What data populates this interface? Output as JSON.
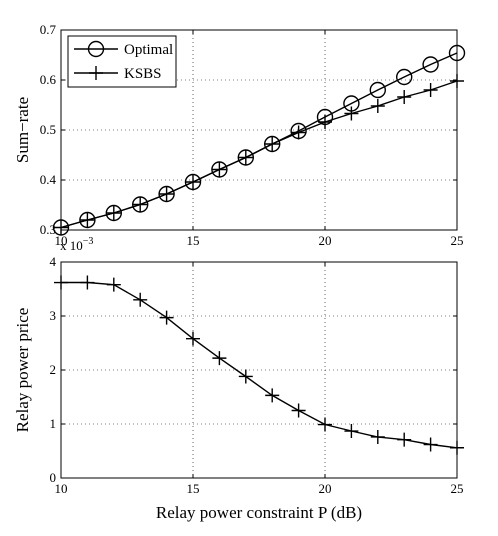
{
  "chart_data": [
    {
      "type": "line",
      "ylabel": "Sum−rate",
      "xlabel": "",
      "xlim": [
        10,
        25
      ],
      "ylim": [
        0.3,
        0.7
      ],
      "xticks": [
        "10",
        "15",
        "20",
        "25"
      ],
      "yticks": [
        "0.3",
        "0.4",
        "0.5",
        "0.6",
        "0.7"
      ],
      "grid": true,
      "legend": "top-left",
      "x": [
        10,
        11,
        12,
        13,
        14,
        15,
        16,
        17,
        18,
        19,
        20,
        21,
        22,
        23,
        24,
        25
      ],
      "series": [
        {
          "name": "Optimal",
          "marker": "circle",
          "values": [
            0.305,
            0.32,
            0.334,
            0.351,
            0.372,
            0.396,
            0.421,
            0.445,
            0.472,
            0.498,
            0.526,
            0.553,
            0.58,
            0.606,
            0.631,
            0.654
          ]
        },
        {
          "name": "KSBS",
          "marker": "plus",
          "values": [
            0.305,
            0.32,
            0.334,
            0.351,
            0.372,
            0.396,
            0.421,
            0.445,
            0.472,
            0.495,
            0.516,
            0.533,
            0.548,
            0.566,
            0.58,
            0.598
          ]
        }
      ]
    },
    {
      "type": "line",
      "ylabel": "Relay power price",
      "xlabel": "Relay power constraint P (dB)",
      "exponent_label": "x 10",
      "exponent_power": "−3",
      "xlim": [
        10,
        25
      ],
      "ylim": [
        0,
        4
      ],
      "xticks": [
        "10",
        "15",
        "20",
        "25"
      ],
      "yticks": [
        "0",
        "1",
        "2",
        "3",
        "4"
      ],
      "grid": true,
      "x": [
        10,
        11,
        12,
        13,
        14,
        15,
        16,
        17,
        18,
        19,
        20,
        21,
        22,
        23,
        24,
        25
      ],
      "series": [
        {
          "marker": "plus",
          "values": [
            3.62,
            3.62,
            3.58,
            3.3,
            2.97,
            2.58,
            2.22,
            1.88,
            1.53,
            1.25,
            0.99,
            0.87,
            0.76,
            0.71,
            0.62,
            0.56
          ]
        }
      ]
    }
  ]
}
